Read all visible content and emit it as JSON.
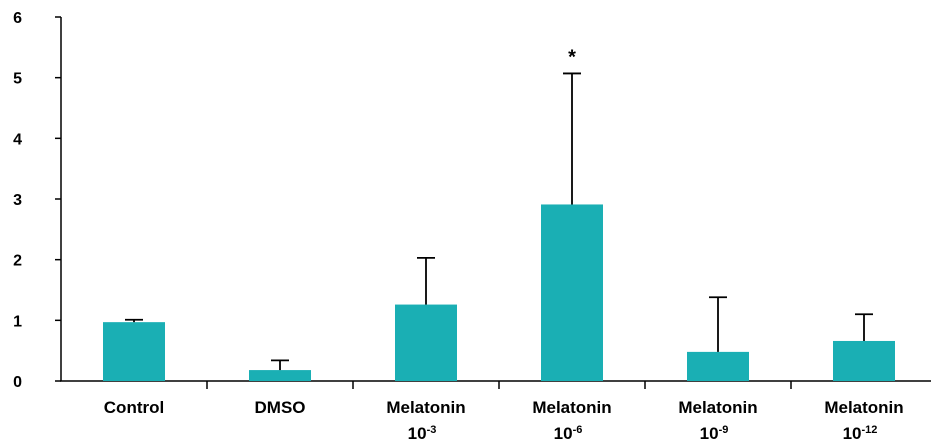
{
  "chart_data": {
    "type": "bar",
    "categories": [
      {
        "name": "Control",
        "exponent": ""
      },
      {
        "name": "DMSO",
        "exponent": ""
      },
      {
        "name": "Melatonin",
        "base": "10",
        "exponent": "-3"
      },
      {
        "name": "Melatonin",
        "base": "10",
        "exponent": "-6"
      },
      {
        "name": "Melatonin",
        "base": "10",
        "exponent": "-9"
      },
      {
        "name": "Melatonin",
        "base": "10",
        "exponent": "-12"
      }
    ],
    "values": [
      0.97,
      0.18,
      1.26,
      2.91,
      0.48,
      0.66
    ],
    "error_upper": [
      1.01,
      0.34,
      2.03,
      5.07,
      1.38,
      1.1
    ],
    "annotations": [
      "",
      "",
      "",
      "*",
      "",
      ""
    ],
    "ylim": [
      0,
      6
    ],
    "yticks": [
      "0",
      "1",
      "2",
      "3",
      "4",
      "5",
      "6"
    ],
    "title": "",
    "xlabel": "",
    "ylabel": "",
    "grid": false,
    "bar_color": "#1aafb4",
    "axis_color": "#000000"
  }
}
